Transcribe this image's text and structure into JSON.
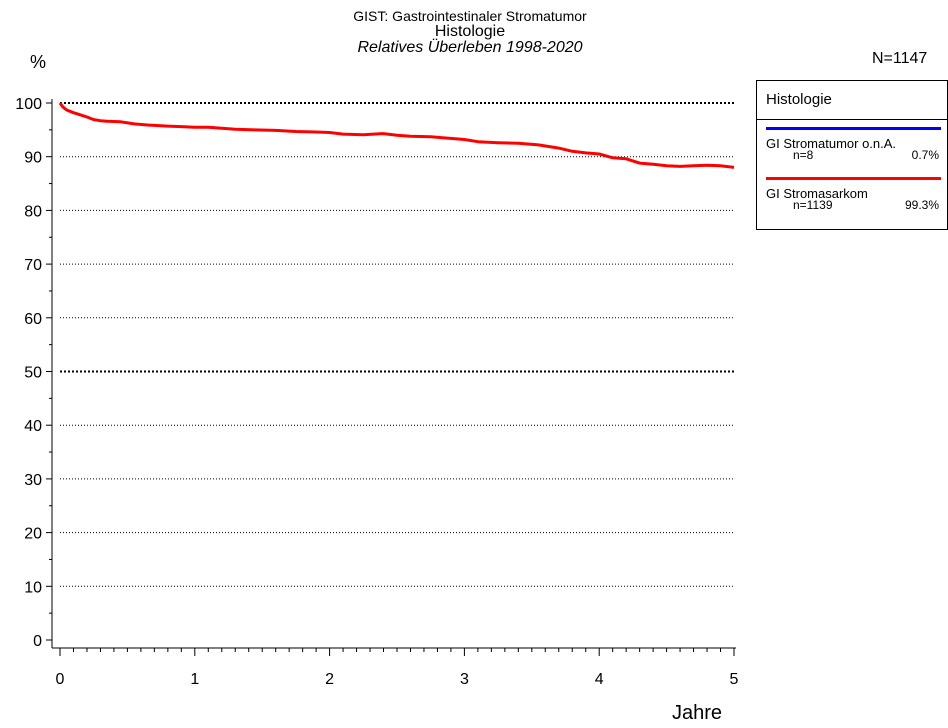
{
  "header": {
    "title_line1": "GIST: Gastrointestinaler Stromatumor",
    "title_line2": "Histologie",
    "title_line3": "Relatives Überleben 1998-2020",
    "y_unit": "%",
    "n_total": "N=1147"
  },
  "legend": {
    "title": "Histologie",
    "items": [
      {
        "name": "GI Stromatumor o.n.A.",
        "n": "n=8",
        "pct": "0.7%",
        "color": "#0000ff"
      },
      {
        "name": "GI Stromasarkom",
        "n": "n=1139",
        "pct": "99.3%",
        "color": "#ff0000"
      }
    ]
  },
  "chart_data": {
    "type": "line",
    "title": "Relatives Überleben 1998-2020",
    "xlabel": "Jahre",
    "ylabel": "%",
    "xlim": [
      0,
      5
    ],
    "ylim": [
      0,
      100
    ],
    "x_ticks": [
      0,
      1,
      2,
      3,
      4,
      5
    ],
    "y_ticks": [
      0,
      10,
      20,
      30,
      40,
      50,
      60,
      70,
      80,
      90,
      100
    ],
    "grid": "horizontal dotted at each 10%, bold at 50 and 100",
    "series": [
      {
        "name": "GI Stromasarkom",
        "color": "#ff0000",
        "x": [
          0,
          0.02,
          0.05,
          0.1,
          0.15,
          0.2,
          0.25,
          0.3,
          0.35,
          0.45,
          0.55,
          0.65,
          0.8,
          0.9,
          1.0,
          1.1,
          1.2,
          1.3,
          1.45,
          1.6,
          1.75,
          1.9,
          2.0,
          2.1,
          2.25,
          2.4,
          2.5,
          2.6,
          2.75,
          2.85,
          3.0,
          3.1,
          3.25,
          3.4,
          3.55,
          3.7,
          3.8,
          3.9,
          4.0,
          4.1,
          4.2,
          4.3,
          4.4,
          4.5,
          4.6,
          4.7,
          4.8,
          4.9,
          5.0
        ],
        "y": [
          100,
          99.3,
          98.7,
          98.2,
          97.8,
          97.4,
          96.9,
          96.7,
          96.6,
          96.5,
          96.1,
          95.9,
          95.7,
          95.6,
          95.5,
          95.5,
          95.3,
          95.1,
          95.0,
          94.9,
          94.7,
          94.6,
          94.5,
          94.2,
          94.1,
          94.3,
          94.0,
          93.8,
          93.7,
          93.5,
          93.2,
          92.8,
          92.6,
          92.5,
          92.2,
          91.6,
          91.0,
          90.7,
          90.5,
          89.8,
          89.6,
          88.8,
          88.6,
          88.3,
          88.2,
          88.3,
          88.4,
          88.3,
          88.0
        ]
      }
    ]
  }
}
